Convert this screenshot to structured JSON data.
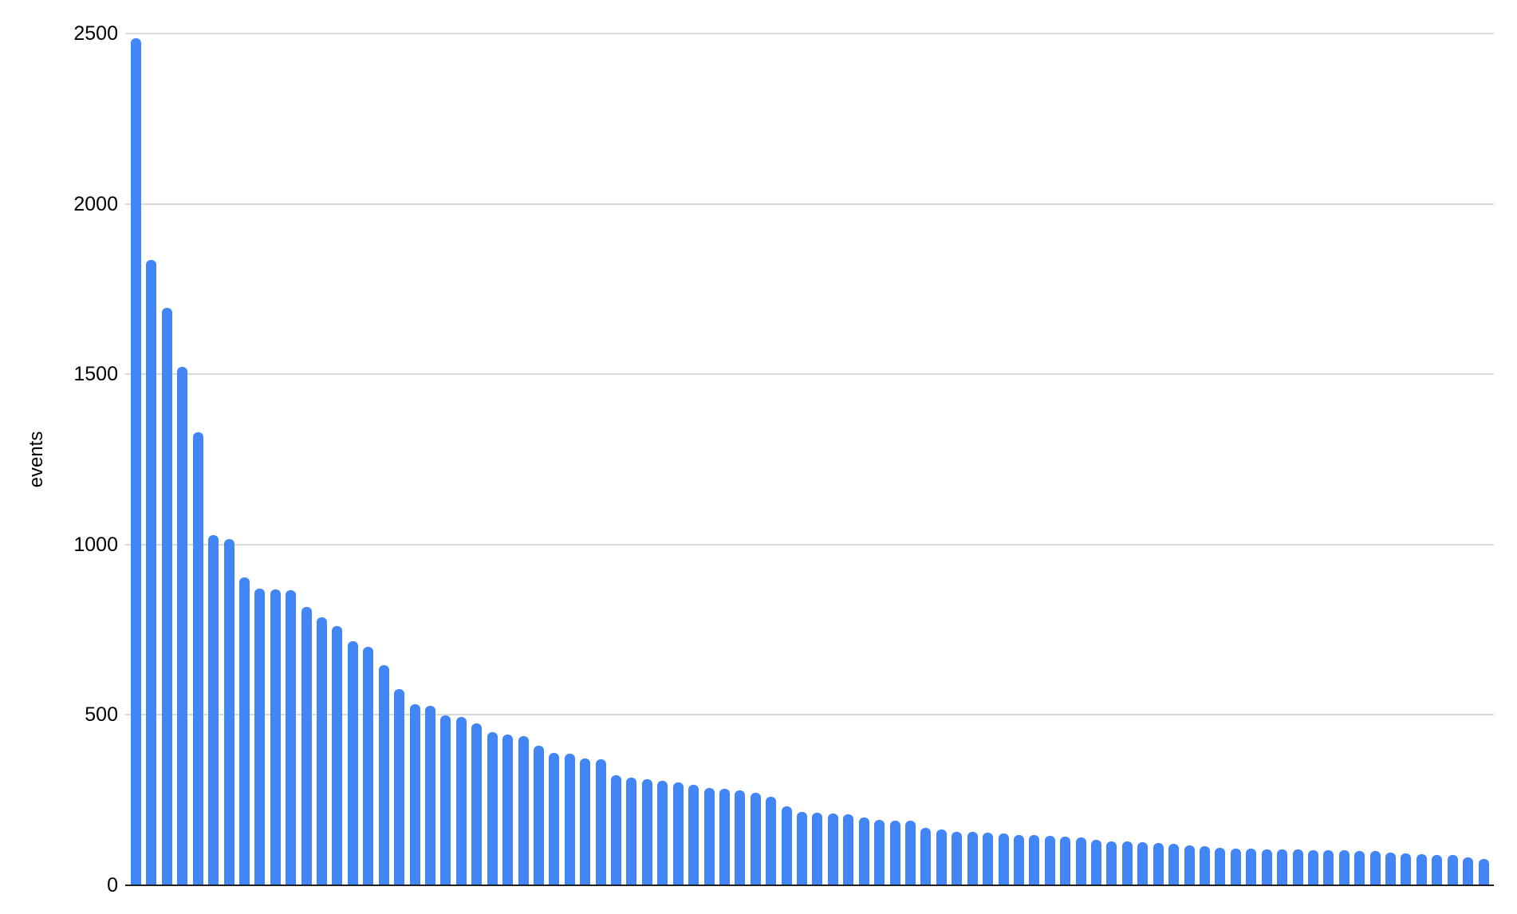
{
  "chart_data": {
    "type": "bar",
    "title": "",
    "xlabel": "",
    "ylabel": "events",
    "ylim": [
      0,
      2500
    ],
    "y_ticks": [
      0,
      500,
      1000,
      1500,
      2000,
      2500
    ],
    "x_tick_labels": [],
    "grid": true,
    "legend_position": "none",
    "bar_color": "#4285f4",
    "gridline_color": "#dadada",
    "baseline_color": "#212121",
    "background_color": "#ffffff",
    "n_bars": 88,
    "values": [
      2485,
      1835,
      1695,
      1522,
      1330,
      1028,
      1016,
      903,
      870,
      868,
      866,
      817,
      786,
      761,
      716,
      700,
      646,
      577,
      532,
      527,
      499,
      493,
      476,
      449,
      443,
      438,
      410,
      389,
      386,
      372,
      371,
      324,
      317,
      311,
      306,
      302,
      294,
      286,
      283,
      279,
      271,
      259,
      232,
      215,
      214,
      211,
      209,
      199,
      191,
      190,
      189,
      168,
      165,
      158,
      157,
      154,
      152,
      148,
      147,
      146,
      142,
      141,
      134,
      129,
      128,
      126,
      125,
      121,
      117,
      115,
      109,
      108,
      107,
      105,
      105,
      105,
      104,
      104,
      103,
      101,
      100,
      95,
      94,
      91,
      90,
      88,
      82,
      78
    ]
  }
}
